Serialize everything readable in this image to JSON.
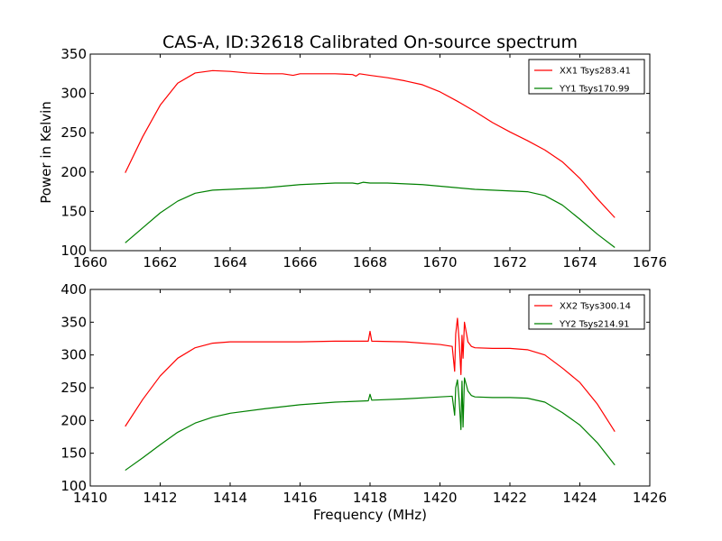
{
  "chart_data": [
    {
      "type": "line",
      "title": "CAS-A, ID:32618 Calibrated On-source spectrum",
      "xlabel": "",
      "ylabel": "Power in Kelvin",
      "xlim": [
        1660,
        1676
      ],
      "ylim": [
        100,
        350
      ],
      "xticks": [
        "1660",
        "1662",
        "1664",
        "1666",
        "1668",
        "1670",
        "1672",
        "1674",
        "1676"
      ],
      "yticks": [
        "100",
        "150",
        "200",
        "250",
        "300",
        "350"
      ],
      "legend_position": "top-right",
      "grid": false,
      "series": [
        {
          "name": "XX1 Tsys283.41",
          "color": "#ff0000",
          "x": [
            1661.0,
            1661.5,
            1662.0,
            1662.5,
            1663.0,
            1663.5,
            1664.0,
            1664.5,
            1665.0,
            1665.5,
            1665.8,
            1666.0,
            1666.5,
            1667.0,
            1667.5,
            1667.6,
            1667.7,
            1668.0,
            1668.5,
            1669.0,
            1669.5,
            1670.0,
            1670.5,
            1671.0,
            1671.5,
            1672.0,
            1672.5,
            1673.0,
            1673.5,
            1674.0,
            1674.5,
            1675.0
          ],
          "y": [
            199,
            245,
            285,
            313,
            326,
            329,
            328,
            326,
            325,
            325,
            323,
            325,
            325,
            325,
            324,
            322,
            325,
            323,
            320,
            316,
            311,
            302,
            290,
            277,
            263,
            251,
            240,
            228,
            213,
            192,
            166,
            142
          ]
        },
        {
          "name": "YY1 Tsys170.99",
          "color": "#008000",
          "x": [
            1661.0,
            1661.5,
            1662.0,
            1662.5,
            1663.0,
            1663.5,
            1664.0,
            1664.5,
            1665.0,
            1665.5,
            1666.0,
            1666.5,
            1667.0,
            1667.5,
            1667.65,
            1667.8,
            1668.0,
            1668.5,
            1669.0,
            1669.5,
            1670.0,
            1670.5,
            1671.0,
            1671.5,
            1672.0,
            1672.5,
            1673.0,
            1673.5,
            1674.0,
            1674.5,
            1675.0
          ],
          "y": [
            110,
            129,
            148,
            163,
            173,
            177,
            178,
            179,
            180,
            182,
            184,
            185,
            186,
            186,
            185,
            187,
            186,
            186,
            185,
            184,
            182,
            180,
            178,
            177,
            176,
            175,
            170,
            158,
            140,
            121,
            104
          ]
        }
      ]
    },
    {
      "type": "line",
      "title": "",
      "xlabel": "Frequency (MHz)",
      "ylabel": "",
      "xlim": [
        1410,
        1426
      ],
      "ylim": [
        100,
        400
      ],
      "xticks": [
        "1410",
        "1412",
        "1414",
        "1416",
        "1418",
        "1420",
        "1422",
        "1424",
        "1426"
      ],
      "yticks": [
        "100",
        "150",
        "200",
        "250",
        "300",
        "350",
        "400"
      ],
      "legend_position": "top-right",
      "grid": false,
      "series": [
        {
          "name": "XX2 Tsys300.14",
          "color": "#ff0000",
          "x": [
            1411.0,
            1411.5,
            1412.0,
            1412.5,
            1413.0,
            1413.5,
            1414.0,
            1415.0,
            1416.0,
            1417.0,
            1417.95,
            1418.0,
            1418.05,
            1419.0,
            1420.0,
            1420.35,
            1420.42,
            1420.45,
            1420.5,
            1420.55,
            1420.6,
            1420.63,
            1420.66,
            1420.7,
            1420.75,
            1420.8,
            1420.9,
            1421.0,
            1421.5,
            1422.0,
            1422.5,
            1423.0,
            1423.5,
            1424.0,
            1424.5,
            1425.0
          ],
          "y": [
            191,
            232,
            268,
            295,
            311,
            318,
            320,
            320,
            320,
            321,
            321,
            336,
            321,
            320,
            316,
            313,
            275,
            332,
            356,
            320,
            270,
            330,
            295,
            350,
            335,
            320,
            313,
            311,
            310,
            310,
            308,
            300,
            280,
            258,
            225,
            183
          ]
        },
        {
          "name": "YY2 Tsys214.91",
          "color": "#008000",
          "x": [
            1411.0,
            1411.5,
            1412.0,
            1412.5,
            1413.0,
            1413.5,
            1414.0,
            1415.0,
            1416.0,
            1417.0,
            1417.95,
            1418.0,
            1418.05,
            1419.0,
            1420.0,
            1420.35,
            1420.42,
            1420.45,
            1420.5,
            1420.55,
            1420.6,
            1420.63,
            1420.66,
            1420.7,
            1420.75,
            1420.8,
            1420.9,
            1421.0,
            1421.5,
            1422.0,
            1422.5,
            1423.0,
            1423.5,
            1424.0,
            1424.5,
            1425.0
          ],
          "y": [
            124,
            143,
            163,
            182,
            196,
            205,
            211,
            218,
            224,
            228,
            230,
            240,
            231,
            233,
            236,
            237,
            208,
            250,
            262,
            230,
            186,
            260,
            190,
            265,
            255,
            245,
            238,
            236,
            235,
            235,
            234,
            228,
            212,
            193,
            166,
            132
          ]
        }
      ]
    }
  ]
}
